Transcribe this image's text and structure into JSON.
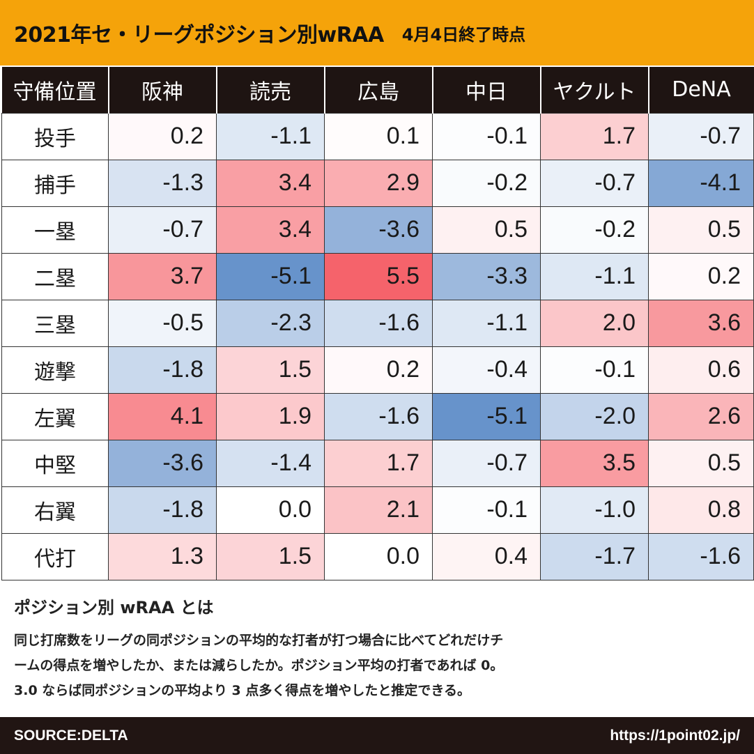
{
  "title": {
    "main": "2021年セ・リーグポジション別wRAA",
    "sub": "4月4日終了時点"
  },
  "chart_data": {
    "type": "table",
    "corner_label": "守備位置",
    "columns": [
      "阪神",
      "読売",
      "広島",
      "中日",
      "ヤクルト",
      "DeNA"
    ],
    "rows": [
      {
        "label": "投手",
        "values": [
          0.2,
          -1.1,
          0.1,
          -0.1,
          1.7,
          -0.7
        ]
      },
      {
        "label": "捕手",
        "values": [
          -1.3,
          3.4,
          2.9,
          -0.2,
          -0.7,
          -4.1
        ]
      },
      {
        "label": "一塁",
        "values": [
          -0.7,
          3.4,
          -3.6,
          0.5,
          -0.2,
          0.5
        ]
      },
      {
        "label": "二塁",
        "values": [
          3.7,
          -5.1,
          5.5,
          -3.3,
          -1.1,
          0.2
        ]
      },
      {
        "label": "三塁",
        "values": [
          -0.5,
          -2.3,
          -1.6,
          -1.1,
          2.0,
          3.6
        ]
      },
      {
        "label": "遊撃",
        "values": [
          -1.8,
          1.5,
          0.2,
          -0.4,
          -0.1,
          0.6
        ]
      },
      {
        "label": "左翼",
        "values": [
          4.1,
          1.9,
          -1.6,
          -5.1,
          -2.0,
          2.6
        ]
      },
      {
        "label": "中堅",
        "values": [
          -3.6,
          -1.4,
          1.7,
          -0.7,
          3.5,
          0.5
        ]
      },
      {
        "label": "右翼",
        "values": [
          -1.8,
          0.0,
          2.1,
          -0.1,
          -1.0,
          0.8
        ]
      },
      {
        "label": "代打",
        "values": [
          1.3,
          1.5,
          0.0,
          0.4,
          -1.7,
          -1.6
        ]
      }
    ],
    "colors": {
      "positive": "#f5636b",
      "negative": "#5b8ac7",
      "neutral": "#ffffff"
    }
  },
  "note": {
    "title": "ポジション別 wRAA とは",
    "lines": [
      "同じ打席数をリーグの同ポジションの平均的な打者が打つ場合に比べてどれだけチ",
      "ームの得点を増やしたか、または減らしたか。ポジション平均の打者であれば 0。",
      "3.0 ならば同ポジションの平均より 3 点多く得点を増やしたと推定できる。"
    ]
  },
  "footer": {
    "source": "SOURCE:DELTA",
    "url": "https://1point02.jp/"
  }
}
